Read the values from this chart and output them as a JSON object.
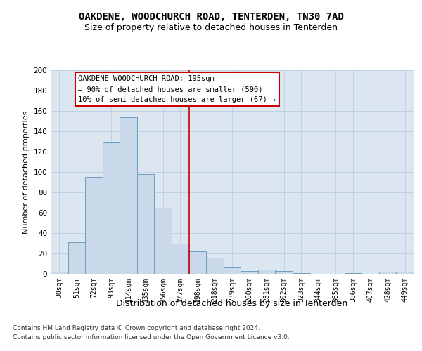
{
  "title": "OAKDENE, WOODCHURCH ROAD, TENTERDEN, TN30 7AD",
  "subtitle": "Size of property relative to detached houses in Tenterden",
  "xlabel": "Distribution of detached houses by size in Tenterden",
  "ylabel": "Number of detached properties",
  "bar_color": "#c9d9ea",
  "bar_edge_color": "#6b9fc0",
  "categories": [
    "30sqm",
    "51sqm",
    "72sqm",
    "93sqm",
    "114sqm",
    "135sqm",
    "156sqm",
    "177sqm",
    "198sqm",
    "218sqm",
    "239sqm",
    "260sqm",
    "281sqm",
    "302sqm",
    "323sqm",
    "344sqm",
    "365sqm",
    "386sqm",
    "407sqm",
    "428sqm",
    "449sqm"
  ],
  "values": [
    2,
    31,
    95,
    130,
    154,
    98,
    65,
    30,
    22,
    16,
    6,
    3,
    4,
    3,
    1,
    0,
    0,
    1,
    0,
    2,
    2
  ],
  "ylim": [
    0,
    200
  ],
  "yticks": [
    0,
    20,
    40,
    60,
    80,
    100,
    120,
    140,
    160,
    180,
    200
  ],
  "vline_x_index": 8,
  "vline_color": "#cc0000",
  "annotation_text": "OAKDENE WOODCHURCH ROAD: 195sqm\n← 90% of detached houses are smaller (590)\n10% of semi-detached houses are larger (67) →",
  "annotation_box_color": "#ffffff",
  "annotation_box_edge": "#cc0000",
  "footer1": "Contains HM Land Registry data © Crown copyright and database right 2024.",
  "footer2": "Contains public sector information licensed under the Open Government Licence v3.0.",
  "background_color": "#dce6f0",
  "grid_color": "#b8c8d8",
  "title_fontsize": 10,
  "subtitle_fontsize": 9,
  "tick_fontsize": 7,
  "ylabel_fontsize": 8,
  "xlabel_fontsize": 9,
  "footer_fontsize": 6.5,
  "annotation_fontsize": 7.5
}
